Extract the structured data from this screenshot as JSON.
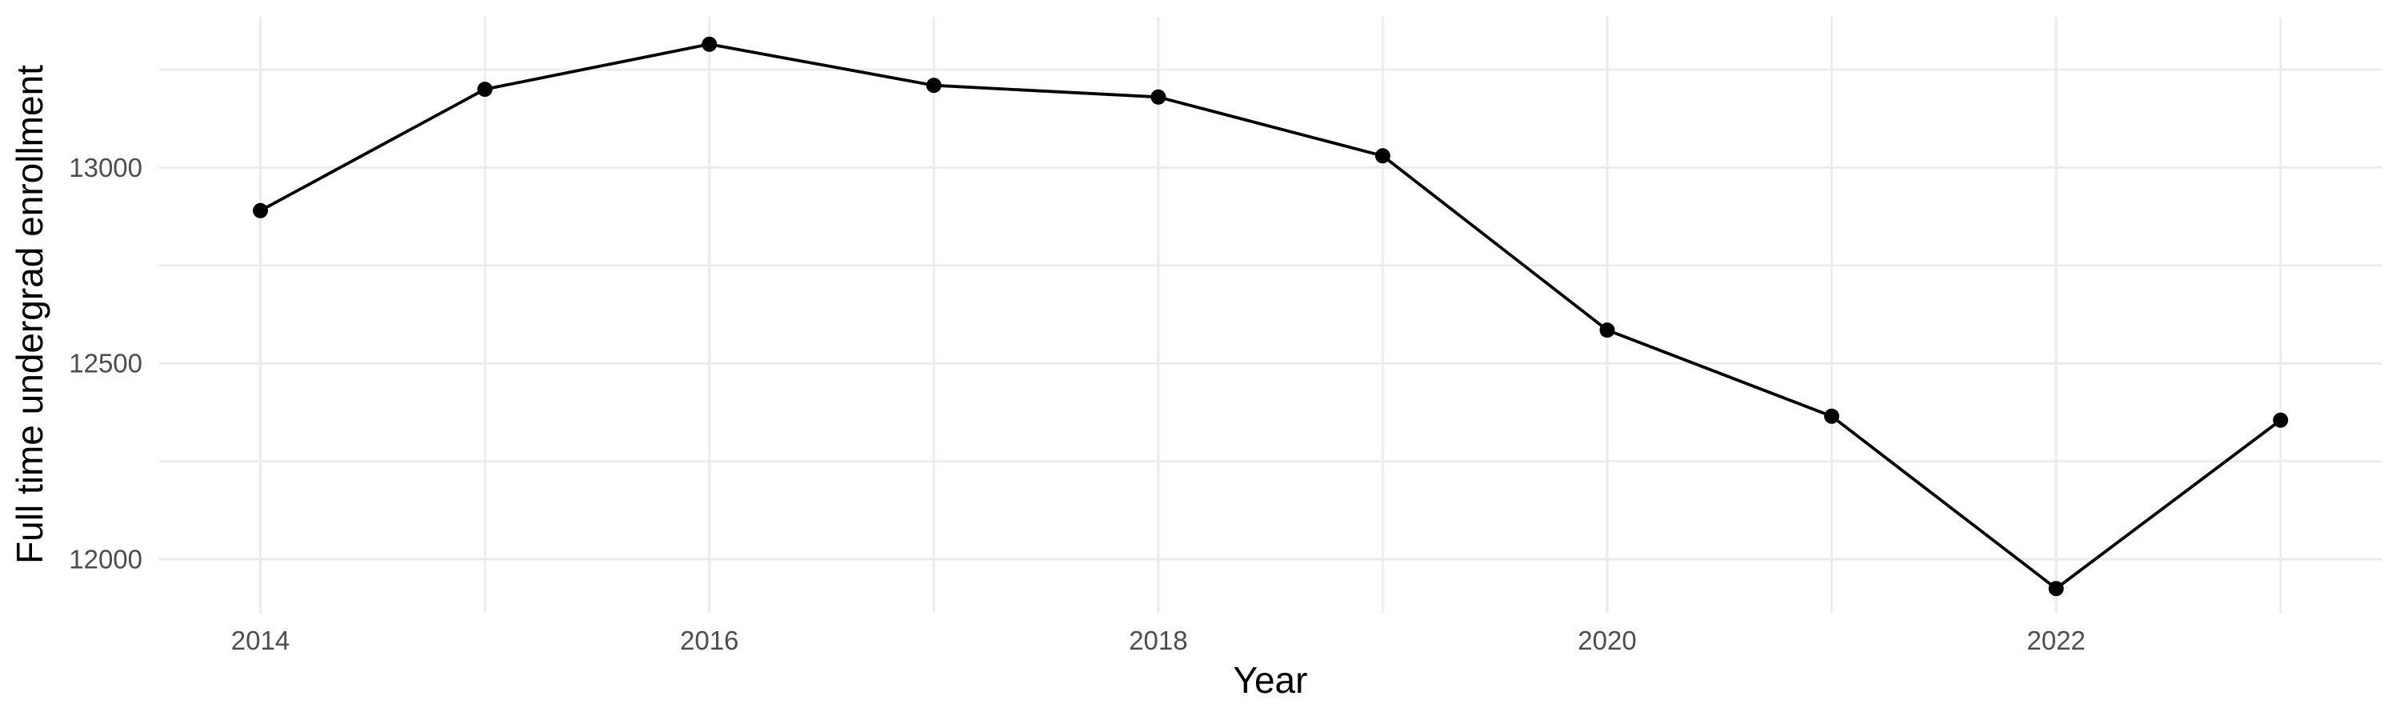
{
  "figure": {
    "background": "#FFFFFF"
  },
  "chart_data": {
    "type": "line",
    "title": "",
    "xlabel": "Year",
    "ylabel": "Full time undergrad enrollment",
    "series_name": "Full time undergrad enrollment",
    "x": [
      2014,
      2015,
      2016,
      2017,
      2018,
      2019,
      2020,
      2021,
      2022,
      2023
    ],
    "y": [
      12890,
      13200,
      13315,
      13210,
      13180,
      13030,
      12585,
      12365,
      11925,
      12355
    ],
    "xlim": [
      2013.549,
      2023.45
    ],
    "ylim": [
      11863,
      13385
    ],
    "x_major_ticks": [
      2014,
      2016,
      2018,
      2020,
      2022
    ],
    "x_tick_labels": [
      "2014",
      "2016",
      "2018",
      "2020",
      "2022"
    ],
    "x_minor_ticks": [
      2015,
      2017,
      2019,
      2021,
      2023
    ],
    "y_major_ticks": [
      12000,
      12500,
      13000
    ],
    "y_tick_labels": [
      "12000",
      "12500",
      "13000"
    ],
    "y_minor_ticks": [
      12250,
      12750,
      13250
    ],
    "grid": "major+minor",
    "legend": "none",
    "line_color": "#000000",
    "point_color": "#000000",
    "grid_color": "#EBEBEB",
    "tick_label_color": "#4D4D4D",
    "axis_title_color": "#000000"
  }
}
